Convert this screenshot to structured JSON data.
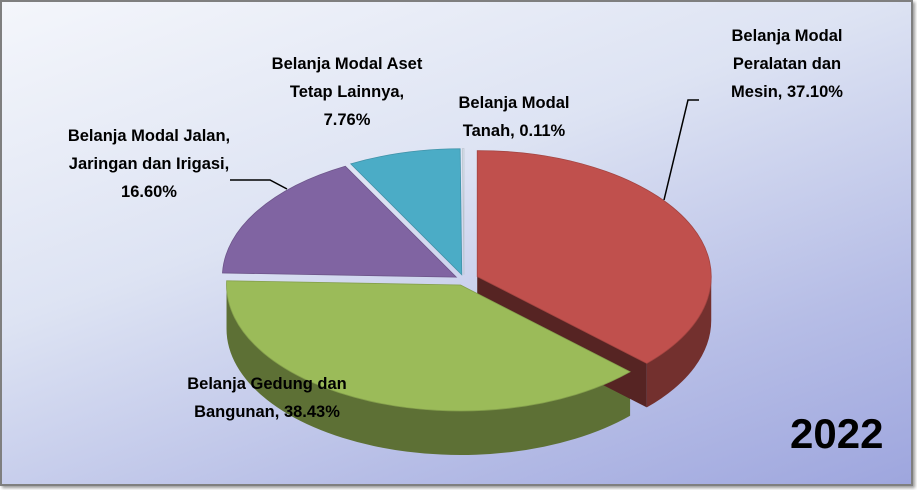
{
  "chart_data": {
    "type": "pie",
    "title": "2022",
    "categories": [
      "Belanja Modal Peralatan dan Mesin,",
      "Belanja Gedung dan Bangunan,",
      "Belanja Modal Jalan, Jaringan dan Irigasi,",
      "Belanja Modal Aset Tetap Lainnya,",
      "Belanja Modal Tanah,"
    ],
    "values": [
      37.1,
      38.43,
      16.6,
      7.76,
      0.11
    ],
    "value_labels": [
      "37.10%",
      "38.43%",
      "16.60%",
      "7.76%",
      "0.11%"
    ],
    "colors": [
      "#c0504d",
      "#9bbb59",
      "#8064a2",
      "#4bacc6",
      "#dce6f2"
    ]
  }
}
